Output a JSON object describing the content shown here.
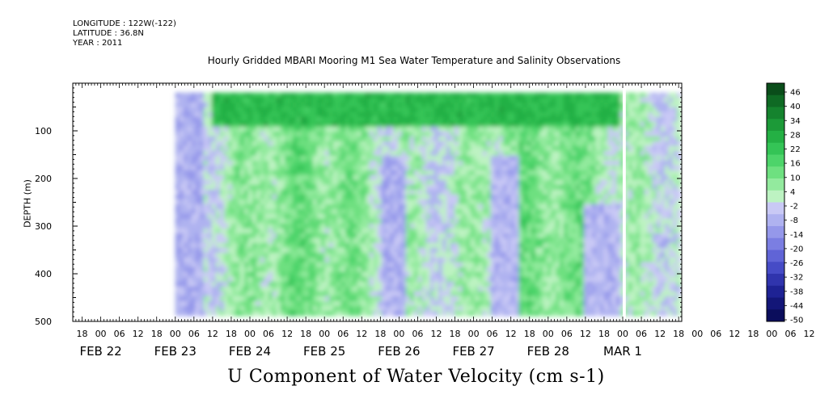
{
  "header": {
    "longitude": "LONGITUDE : 122W(-122)",
    "latitude": "LATITUDE : 36.8N",
    "year": "YEAR : 2011"
  },
  "chart_data": {
    "type": "heatmap",
    "title": "Hourly Gridded MBARI Mooring M1 Sea Water Temperature and Salinity Observations",
    "xlabel": "U Component of Water Velocity (cm s-1)",
    "ylabel": "DEPTH (m)",
    "y_axis": {
      "range": [
        0,
        500
      ],
      "ticks": [
        100,
        200,
        300,
        400,
        500
      ],
      "reversed": true
    },
    "x_axis": {
      "start": "2011-02-21T15:00",
      "end": "2011-03-01T19:00",
      "hour_ticks": [
        "18",
        "00",
        "06",
        "12",
        "18",
        "00",
        "06",
        "12",
        "18",
        "00",
        "06",
        "12",
        "18",
        "00",
        "06",
        "12",
        "18",
        "00",
        "06",
        "12",
        "18",
        "00",
        "06",
        "12",
        "18",
        "00",
        "06",
        "12",
        "18",
        "00",
        "06",
        "12",
        "18",
        "00",
        "06",
        "12",
        "18",
        "00",
        "06",
        "12",
        "18",
        "00",
        "06",
        "12",
        "18"
      ],
      "day_labels": [
        "FEB 22",
        "FEB 23",
        "FEB 24",
        "FEB 25",
        "FEB 26",
        "FEB 27",
        "FEB 28",
        "MAR  1"
      ]
    },
    "data_extent": {
      "start": "2011-02-23T00:00",
      "end": "2011-03-01T18:00",
      "depth_min": 20,
      "depth_max": 485
    },
    "data_gap": {
      "start": "2011-03-01T00:00",
      "end": "2011-03-01T01:00"
    },
    "colorbar": {
      "labels": [
        "46",
        "40",
        "34",
        "28",
        "22",
        "16",
        "10",
        "4",
        "-2",
        "-8",
        "-14",
        "-20",
        "-26",
        "-32",
        "-38",
        "-44",
        "-50"
      ],
      "colors": [
        "#0a4d1a",
        "#0f6a24",
        "#15832e",
        "#1c9a38",
        "#24b044",
        "#34c456",
        "#4dd46a",
        "#6ee080",
        "#93ea9e",
        "#bdf3c2",
        "#c9c9f5",
        "#afb2f0",
        "#9598ea",
        "#7b7ee2",
        "#6064d6",
        "#464bc6",
        "#3034ad",
        "#1e2294",
        "#131678",
        "#0b0d5c"
      ]
    },
    "field_features": [
      {
        "label": "positive surface band",
        "time_from": "2011-02-23T12:00",
        "time_to": "2011-02-28T23:00",
        "depth_from": 20,
        "depth_to": 90,
        "value": 22
      },
      {
        "label": "negative column",
        "time_from": "2011-02-23T00:00",
        "time_to": "2011-02-23T09:00",
        "depth_from": 20,
        "depth_to": 485,
        "value": -10
      },
      {
        "label": "negative column",
        "time_from": "2011-02-25T18:00",
        "time_to": "2011-02-26T02:00",
        "depth_from": 150,
        "depth_to": 485,
        "value": -10
      },
      {
        "label": "negative column",
        "time_from": "2011-02-27T06:00",
        "time_to": "2011-02-27T14:00",
        "depth_from": 150,
        "depth_to": 485,
        "value": -8
      },
      {
        "label": "negative column",
        "time_from": "2011-02-28T12:00",
        "time_to": "2011-02-28T23:00",
        "depth_from": 250,
        "depth_to": 485,
        "value": -8
      }
    ]
  }
}
